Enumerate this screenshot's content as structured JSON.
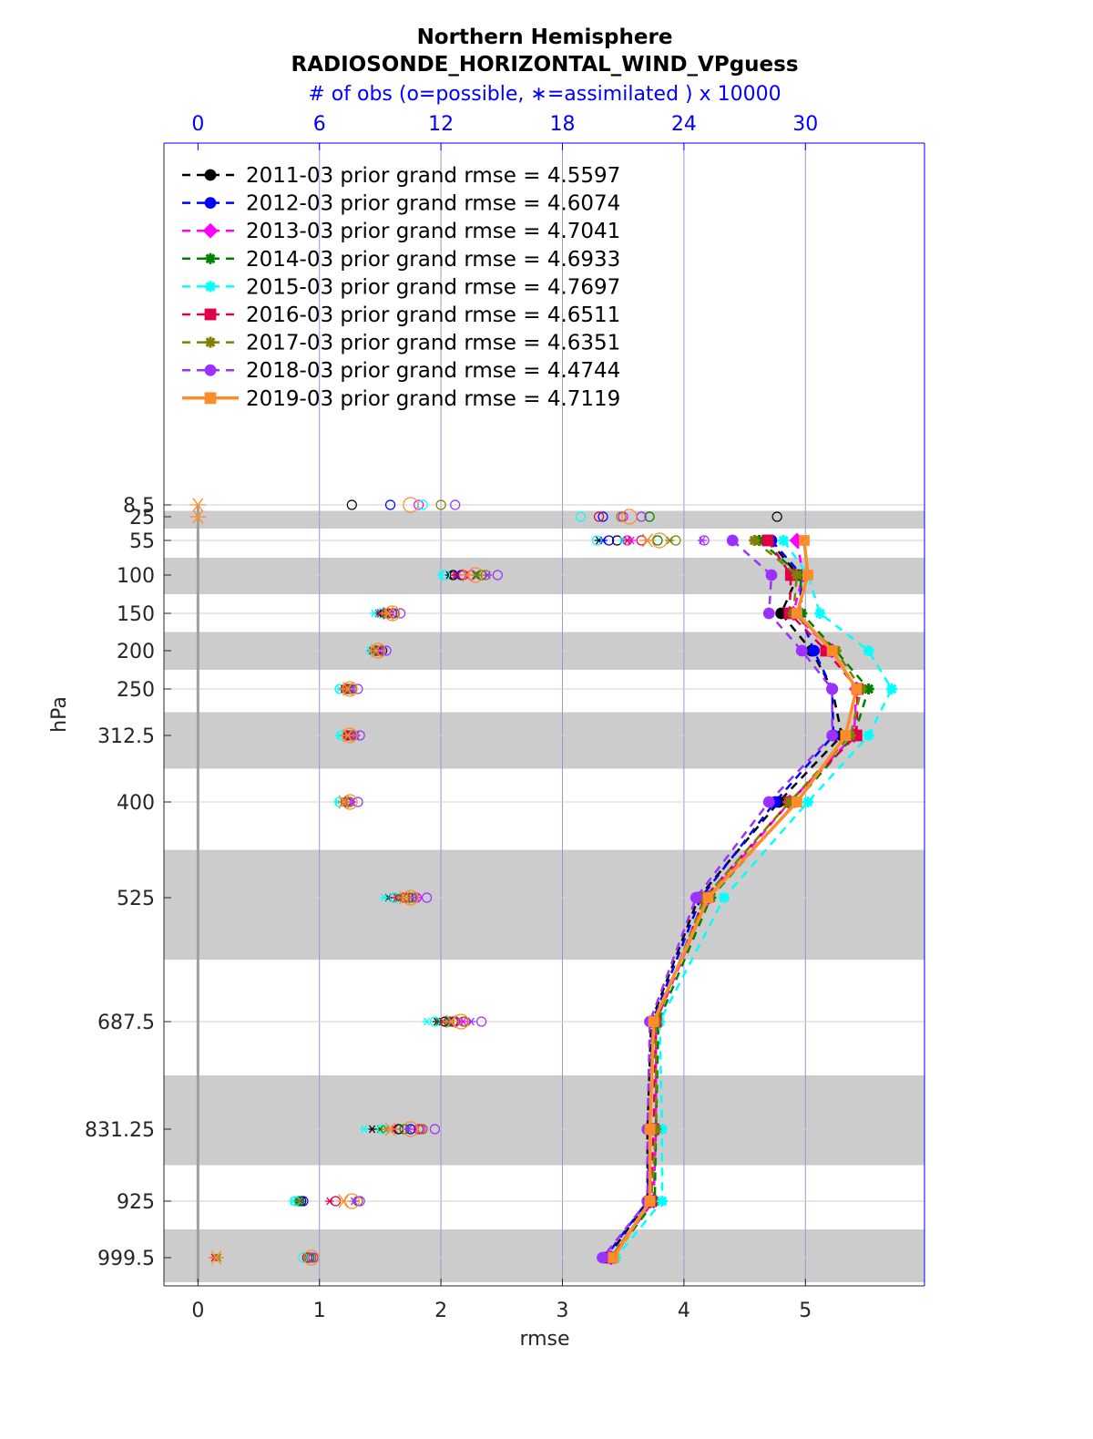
{
  "chart_data": {
    "type": "line",
    "title": "Northern Hemisphere",
    "subtitle": "RADIOSONDE_HORIZONTAL_WIND_VPguess",
    "xlabel": "rmse",
    "ylabel": "hPa",
    "top_axis_label": "# of obs (o=possible, ∗=assimilated ) x 10000",
    "xlim": [
      -0.28,
      5.98
    ],
    "x_ticks": [
      "0",
      "1",
      "2",
      "3",
      "4",
      "5"
    ],
    "top_xlim": [
      -1.68,
      35.88
    ],
    "top_ticks": [
      "0",
      "6",
      "12",
      "18",
      "24",
      "30"
    ],
    "legend_position": "top-left",
    "grid": true,
    "levels": [
      8.5,
      25,
      55,
      100,
      150,
      200,
      250,
      312.5,
      400,
      525,
      687.5,
      831.25,
      925,
      999.5
    ],
    "level_labels": [
      "8.5",
      "25",
      "55",
      "100",
      "150",
      "200",
      "250",
      "312.5",
      "400",
      "525",
      "687.5",
      "831.25",
      "925",
      "999.5"
    ],
    "series": [
      {
        "name": "2011-03 prior grand rmse = 4.5597",
        "color": "#000000",
        "marker": "circle",
        "line": "dashed",
        "rmse": [
          null,
          null,
          4.7,
          4.94,
          4.8,
          5.05,
          5.22,
          5.3,
          4.78,
          4.12,
          3.73,
          3.7,
          3.7,
          3.37
        ],
        "obs_possible": [
          7.6,
          28.6,
          20.7,
          12.6,
          9.2,
          8.8,
          7.4,
          7.4,
          7.3,
          9.7,
          12.2,
          9.9,
          5.1,
          5.4
        ],
        "obs_assimilated": [
          null,
          null,
          19.8,
          12.4,
          8.9,
          8.6,
          7.2,
          7.3,
          7.2,
          9.4,
          11.8,
          8.6,
          5.0,
          null
        ]
      },
      {
        "name": "2012-03 prior grand rmse = 4.6074",
        "color": "#0000ff",
        "marker": "circle",
        "line": "dashed",
        "rmse": [
          null,
          null,
          4.72,
          4.97,
          4.95,
          5.07,
          5.22,
          5.23,
          4.75,
          4.14,
          3.74,
          3.72,
          3.7,
          3.35
        ],
        "obs_possible": [
          9.5,
          20.0,
          20.3,
          13.0,
          9.6,
          9.1,
          7.5,
          7.6,
          7.4,
          10.4,
          12.6,
          10.5,
          5.2,
          5.5
        ],
        "obs_assimilated": [
          null,
          null,
          20.0,
          12.8,
          9.3,
          8.8,
          7.4,
          7.5,
          7.3,
          10.1,
          12.4,
          9.5,
          5.1,
          null
        ]
      },
      {
        "name": "2013-03 prior grand rmse = 4.7041",
        "color": "#ff00ff",
        "marker": "diamond",
        "line": "dashed",
        "rmse": [
          null,
          null,
          4.93,
          4.98,
          4.9,
          5.22,
          5.42,
          5.4,
          4.87,
          4.2,
          3.77,
          3.77,
          3.75,
          3.4
        ],
        "obs_possible": [
          10.9,
          21.0,
          21.2,
          13.5,
          9.7,
          9.0,
          7.6,
          7.6,
          7.4,
          10.8,
          13.2,
          11.0,
          7.9,
          5.6
        ],
        "obs_assimilated": [
          null,
          null,
          21.4,
          13.3,
          9.6,
          9.0,
          7.5,
          7.5,
          7.3,
          10.5,
          13.1,
          10.4,
          7.7,
          0.9
        ]
      },
      {
        "name": "2014-03 prior grand rmse = 4.6933",
        "color": "#008000",
        "marker": "star",
        "line": "dashed",
        "rmse": [
          null,
          null,
          4.62,
          4.96,
          4.97,
          5.25,
          5.52,
          5.4,
          4.92,
          4.22,
          3.79,
          3.77,
          3.76,
          3.41
        ],
        "obs_possible": [
          null,
          22.3,
          22.7,
          14.0,
          9.7,
          8.9,
          7.4,
          7.5,
          7.3,
          10.4,
          12.4,
          10.2,
          5.0,
          5.5
        ],
        "obs_assimilated": [
          null,
          null,
          22.2,
          13.7,
          9.2,
          8.6,
          7.2,
          7.3,
          7.2,
          9.9,
          11.9,
          9.0,
          4.9,
          0.9
        ]
      },
      {
        "name": "2015-03 prior grand rmse = 4.7697",
        "color": "#00ffff",
        "marker": "star",
        "line": "dashed",
        "rmse": [
          null,
          null,
          4.82,
          5.02,
          5.12,
          5.52,
          5.71,
          5.52,
          5.02,
          4.33,
          3.8,
          3.82,
          3.82,
          3.44
        ],
        "obs_possible": [
          11.1,
          18.9,
          19.7,
          12.2,
          9.0,
          8.6,
          7.0,
          7.1,
          7.0,
          9.7,
          11.7,
          9.1,
          4.8,
          5.2
        ],
        "obs_assimilated": [
          null,
          null,
          21.0,
          12.0,
          8.7,
          8.5,
          7.0,
          7.0,
          6.9,
          9.2,
          11.3,
          8.2,
          4.7,
          null
        ]
      },
      {
        "name": "2016-03 prior grand rmse = 4.6511",
        "color": "#e0004a",
        "marker": "square",
        "line": "dashed",
        "rmse": [
          null,
          null,
          4.69,
          4.88,
          4.87,
          5.17,
          5.43,
          5.42,
          4.87,
          4.17,
          3.77,
          3.75,
          3.73,
          3.4
        ],
        "obs_possible": [
          null,
          19.8,
          21.9,
          13.1,
          9.4,
          8.9,
          7.3,
          7.4,
          7.3,
          10.2,
          12.7,
          10.9,
          6.8,
          5.4
        ],
        "obs_assimilated": [
          null,
          null,
          21.2,
          12.7,
          9.0,
          8.6,
          7.2,
          7.3,
          7.2,
          9.8,
          12.1,
          9.7,
          6.5,
          0.8
        ]
      },
      {
        "name": "2017-03 prior grand rmse = 4.6351",
        "color": "#808000",
        "marker": "star",
        "line": "dashed",
        "rmse": [
          null,
          null,
          4.58,
          4.93,
          4.9,
          5.25,
          5.46,
          5.37,
          4.87,
          4.17,
          3.77,
          3.77,
          3.73,
          3.4
        ],
        "obs_possible": [
          12.0,
          20.9,
          23.6,
          14.2,
          9.7,
          9.0,
          7.6,
          7.7,
          7.5,
          10.6,
          13.1,
          11.1,
          7.9,
          5.6
        ],
        "obs_assimilated": [
          null,
          null,
          23.3,
          13.8,
          9.3,
          8.7,
          7.3,
          7.4,
          7.3,
          10.1,
          12.3,
          9.3,
          5.0,
          1.0
        ]
      },
      {
        "name": "2018-03 prior grand rmse = 4.4744",
        "color": "#9b30ff",
        "marker": "circle",
        "line": "dashed",
        "rmse": [
          null,
          null,
          4.4,
          4.72,
          4.7,
          4.97,
          5.22,
          5.22,
          4.7,
          4.1,
          3.72,
          3.7,
          3.7,
          3.33
        ],
        "obs_possible": [
          12.7,
          21.9,
          25.0,
          14.8,
          10.0,
          9.3,
          7.9,
          8.0,
          7.9,
          11.3,
          14.0,
          11.7,
          8.0,
          5.7
        ],
        "obs_assimilated": [
          null,
          null,
          24.9,
          14.3,
          9.6,
          9.0,
          7.6,
          7.8,
          7.6,
          10.8,
          13.5,
          10.4,
          7.7,
          null
        ]
      },
      {
        "name": "2019-03 prior grand rmse = 4.7119",
        "color": "#ff8c2a",
        "marker": "square",
        "line": "solid",
        "rmse": [
          null,
          null,
          4.99,
          5.02,
          4.93,
          5.22,
          5.42,
          5.33,
          4.93,
          4.2,
          3.75,
          3.72,
          3.72,
          3.42
        ],
        "obs_possible": [
          10.5,
          21.3,
          22.8,
          13.7,
          9.6,
          8.9,
          7.5,
          7.5,
          7.5,
          10.5,
          13.0,
          10.5,
          7.6,
          5.6
        ],
        "obs_assimilated": [
          0.0,
          0.0,
          22.2,
          13.3,
          9.4,
          8.8,
          7.4,
          7.4,
          7.2,
          10.2,
          12.5,
          9.5,
          7.2,
          0.9
        ]
      }
    ]
  }
}
